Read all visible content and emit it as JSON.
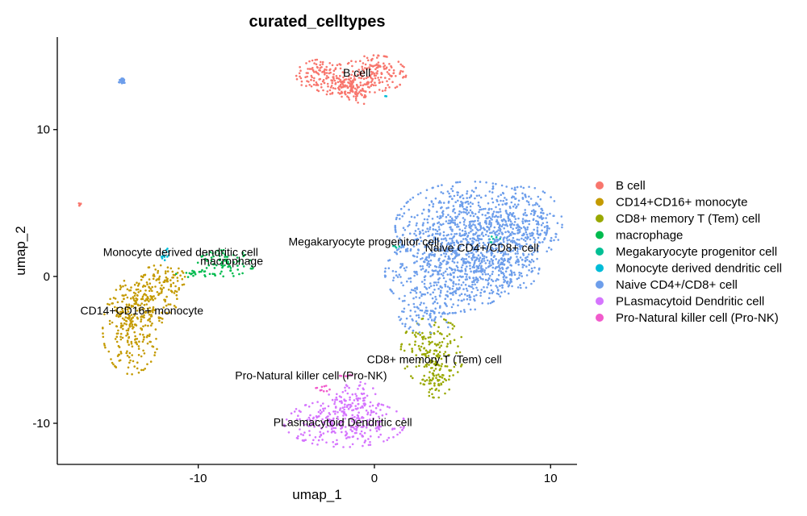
{
  "chart_data": {
    "type": "scatter",
    "title": "curated_celltypes",
    "xlabel": "umap_1",
    "ylabel": "umap_2",
    "xlim": [
      -18,
      11.5
    ],
    "ylim": [
      -12.8,
      16.3
    ],
    "xticks": [
      -10,
      0,
      10
    ],
    "yticks": [
      -10,
      0,
      10
    ],
    "xtick_labels": [
      "-10",
      "0",
      "10"
    ],
    "ytick_labels": [
      "-10",
      "0",
      "10"
    ],
    "grid": false,
    "legend_position": "right",
    "series": [
      {
        "name": "B cell",
        "color": "#F8766D",
        "label": "B cell",
        "label_at": [
          -1.0,
          13.6
        ],
        "blobs": [
          {
            "cx": -3.0,
            "cy": 13.7,
            "rx": 0.8,
            "ry": 0.6,
            "n": 110
          },
          {
            "cx": -1.9,
            "cy": 13.0,
            "rx": 0.6,
            "ry": 0.5,
            "n": 70
          },
          {
            "cx": 0.0,
            "cy": 13.8,
            "rx": 1.0,
            "ry": 0.7,
            "n": 170
          },
          {
            "cx": -1.0,
            "cy": 12.5,
            "rx": 0.5,
            "ry": 0.5,
            "n": 50
          },
          {
            "cx": -16.7,
            "cy": 4.9,
            "rx": 0.06,
            "ry": 0.06,
            "n": 5
          }
        ]
      },
      {
        "name": "CD14+CD16+ monocyte",
        "color": "#C49A00",
        "label": "CD14+CD16+ monocyte",
        "label_at": [
          -13.2,
          -2.6
        ],
        "blobs": [
          {
            "cx": -13.8,
            "cy": -3.6,
            "rx": 0.9,
            "ry": 1.7,
            "n": 230
          },
          {
            "cx": -13.0,
            "cy": -1.6,
            "rx": 1.0,
            "ry": 1.0,
            "n": 130
          },
          {
            "cx": -12.0,
            "cy": -0.2,
            "rx": 0.7,
            "ry": 0.6,
            "n": 70
          }
        ]
      },
      {
        "name": "CD8+ memory T (Tem) cell",
        "color": "#53B400",
        "label": "CD8+ memory T (Tem) cell",
        "label_at": [
          3.4,
          -5.9
        ],
        "blobs": [
          {
            "cx": 3.3,
            "cy": -5.1,
            "rx": 1.0,
            "ry": 1.3,
            "n": 160
          },
          {
            "cx": 3.5,
            "cy": -7.0,
            "rx": 0.5,
            "ry": 0.7,
            "n": 60
          }
        ],
        "color_override": "#99A800"
      },
      {
        "name": "macrophage",
        "color": "#00B63A",
        "label": "macrophage",
        "label_at": [
          -8.1,
          0.8
        ],
        "blobs": [
          {
            "cx": -8.4,
            "cy": 0.9,
            "rx": 0.9,
            "ry": 0.5,
            "n": 80
          },
          {
            "cx": -10.0,
            "cy": 0.2,
            "rx": 0.7,
            "ry": 0.15,
            "n": 20
          }
        ],
        "color_override": "#00BB4E"
      },
      {
        "name": "Megakaryocyte progenitor cell",
        "color": "#00C094",
        "label": "Megakaryocyte progenitor cell",
        "label_at": [
          -0.6,
          2.1
        ],
        "blobs": [
          {
            "cx": 1.3,
            "cy": 2.0,
            "rx": 0.2,
            "ry": 0.1,
            "n": 6
          },
          {
            "cx": 6.6,
            "cy": 2.6,
            "rx": 0.3,
            "ry": 0.15,
            "n": 8
          }
        ],
        "color_override": "#00BF94"
      },
      {
        "name": "Monocyte derived dendritic cell",
        "color": "#00B6EB",
        "label": "Monocyte derived dendritic cell",
        "label_at": [
          -11.0,
          1.4
        ],
        "blobs": [
          {
            "cx": -11.9,
            "cy": 1.5,
            "rx": 0.15,
            "ry": 0.3,
            "n": 12
          },
          {
            "cx": 0.6,
            "cy": 12.2,
            "rx": 0.08,
            "ry": 0.08,
            "n": 2
          }
        ],
        "color_override": "#00BCD8"
      },
      {
        "name": "Naive CD4+/CD8+ cell",
        "color": "#619CFF",
        "label": "Naive CD4+/CD8+ cell",
        "label_at": [
          6.1,
          1.7
        ],
        "blobs": [
          {
            "cx": 5.5,
            "cy": 3.4,
            "rx": 2.4,
            "ry": 1.7,
            "n": 700
          },
          {
            "cx": 4.2,
            "cy": 0.2,
            "rx": 2.0,
            "ry": 1.5,
            "n": 500
          },
          {
            "cx": 8.5,
            "cy": 3.6,
            "rx": 1.2,
            "ry": 1.4,
            "n": 190
          },
          {
            "cx": 7.2,
            "cy": 0.6,
            "rx": 1.2,
            "ry": 1.0,
            "n": 150
          },
          {
            "cx": 3.0,
            "cy": -2.6,
            "rx": 0.9,
            "ry": 0.7,
            "n": 80
          },
          {
            "cx": -14.3,
            "cy": 13.3,
            "rx": 0.12,
            "ry": 0.1,
            "n": 30
          }
        ],
        "color_override": "#6D9EEB"
      },
      {
        "name": "PLasmacytoid Dendritic cell",
        "color": "#DB72FB",
        "label": "PLasmacytoid Dendritic cell",
        "label_at": [
          -1.8,
          -10.2
        ],
        "blobs": [
          {
            "cx": -1.7,
            "cy": -10.0,
            "rx": 1.9,
            "ry": 0.9,
            "n": 300
          },
          {
            "cx": -1.2,
            "cy": -8.4,
            "rx": 0.8,
            "ry": 0.7,
            "n": 70
          }
        ],
        "color_override": "#D575FE"
      },
      {
        "name": "Pro-Natural killer cell (Pro-NK)",
        "color": "#FF61C3",
        "label": "Pro-Natural killer cell (Pro-NK)",
        "label_at": [
          -3.6,
          -7.0
        ],
        "blobs": [
          {
            "cx": -2.9,
            "cy": -7.7,
            "rx": 0.25,
            "ry": 0.15,
            "n": 10
          },
          {
            "cx": -1.6,
            "cy": -6.8,
            "rx": 0.2,
            "ry": 0.1,
            "n": 6
          }
        ],
        "color_override": "#F15BCC"
      }
    ]
  }
}
